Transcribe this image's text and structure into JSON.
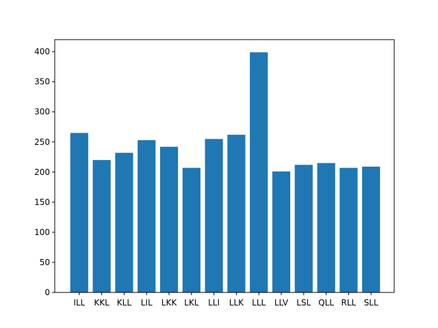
{
  "chart_data": {
    "type": "bar",
    "categories": [
      "ILL",
      "KKL",
      "KLL",
      "LIL",
      "LKK",
      "LKL",
      "LLI",
      "LLK",
      "LLL",
      "LLV",
      "LSL",
      "QLL",
      "RLL",
      "SLL"
    ],
    "values": [
      265,
      220,
      232,
      253,
      242,
      207,
      255,
      262,
      399,
      201,
      212,
      215,
      207,
      209
    ],
    "title": "",
    "xlabel": "",
    "ylabel": "",
    "ylim": [
      0,
      420
    ],
    "yticks": [
      0,
      50,
      100,
      150,
      200,
      250,
      300,
      350,
      400
    ],
    "grid": false,
    "bar_color": "#1f77b4"
  }
}
